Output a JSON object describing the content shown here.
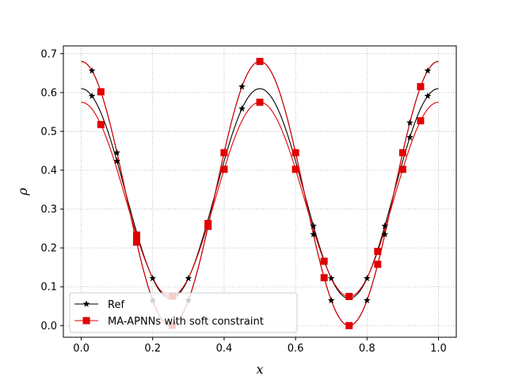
{
  "chart_data": {
    "type": "line",
    "xlabel": "x",
    "ylabel": "ρ",
    "xlim": [
      -0.05,
      1.05
    ],
    "ylim": [
      -0.03,
      0.72
    ],
    "x_ticks": [
      "0.0",
      "0.2",
      "0.4",
      "0.6",
      "0.8",
      "1.0"
    ],
    "y_ticks": [
      "0.0",
      "0.1",
      "0.2",
      "0.3",
      "0.4",
      "0.5",
      "0.6",
      "0.7"
    ],
    "grid": true,
    "legend_position": "lower-left",
    "legend": [
      "Ref",
      "MA-APNNs with soft constraint"
    ],
    "series": [
      {
        "name": "Ref",
        "role": "upper",
        "marker": "star",
        "color": "#000000",
        "mean": 0.34,
        "amp": 0.27,
        "mid_peak": 0.61,
        "lo_val": 0.075
      },
      {
        "name": "Ref",
        "role": "lower",
        "marker": "star",
        "color": "#000000",
        "mean": 0.34,
        "amp": 0.34,
        "mid_peak": 0.68,
        "lo_val": 0.005
      },
      {
        "name": "MA-APNNs with soft constraint",
        "role": "upper",
        "marker": "square",
        "color": "#e00000",
        "mean": 0.325,
        "amp": 0.25,
        "mid_peak": 0.612,
        "lo_val": 0.078
      },
      {
        "name": "MA-APNNs with soft constraint",
        "role": "lower",
        "marker": "square",
        "color": "#e00000",
        "mean": 0.34,
        "amp": 0.34,
        "mid_peak": 0.68,
        "lo_val": 0.005
      }
    ],
    "star_markers_x": [
      0.03,
      0.1,
      0.2,
      0.3,
      0.45,
      0.65,
      0.7,
      0.8,
      0.85,
      0.92,
      0.97
    ],
    "square_markers_x": [
      0.055,
      0.155,
      0.255,
      0.355,
      0.4,
      0.5,
      0.6,
      0.68,
      0.75,
      0.83,
      0.9,
      0.95
    ]
  }
}
